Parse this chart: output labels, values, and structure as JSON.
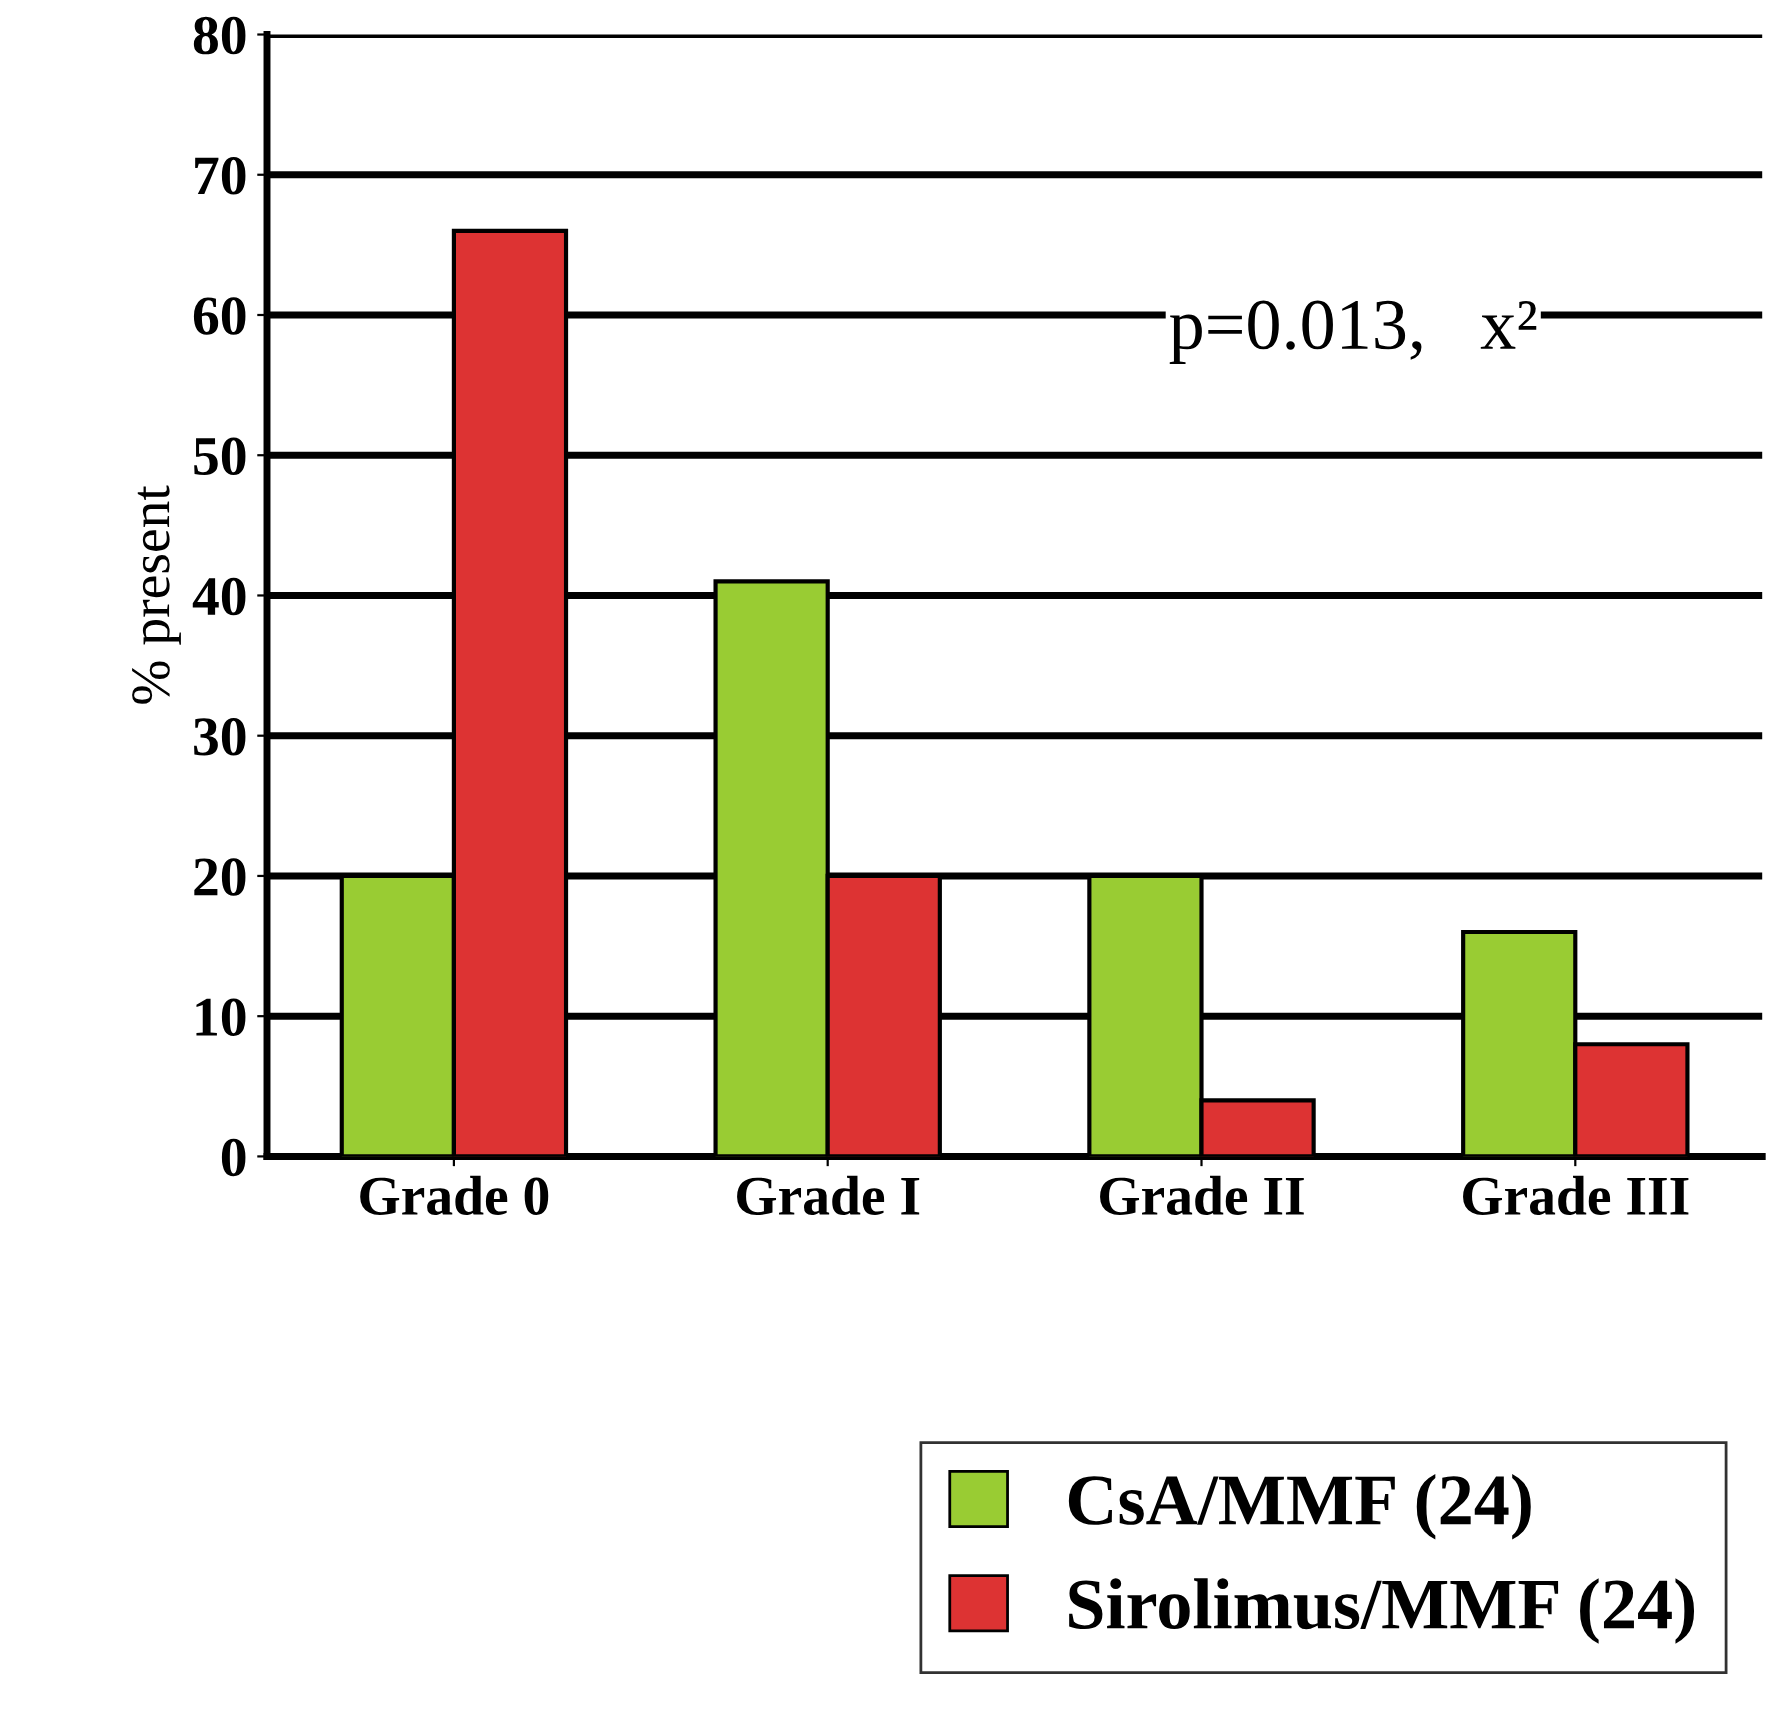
{
  "chart_data": {
    "type": "bar",
    "ylabel": "% present",
    "categories": [
      "Grade 0",
      "Grade I",
      "Grade II",
      "Grade III"
    ],
    "series": [
      {
        "name": "CsA/MMF (24)",
        "color": "#99cc33",
        "values": [
          20,
          41,
          20,
          16
        ]
      },
      {
        "name": "Sirolimus/MMF (24)",
        "color": "#dd3333",
        "values": [
          66,
          20,
          4,
          8
        ]
      }
    ],
    "ylim": [
      0,
      80
    ],
    "yticks": [
      0,
      10,
      20,
      30,
      40,
      50,
      60,
      70,
      80
    ],
    "grid": "y",
    "legend": "bottom right",
    "annotations": [
      "p=0.013,   x²"
    ]
  }
}
